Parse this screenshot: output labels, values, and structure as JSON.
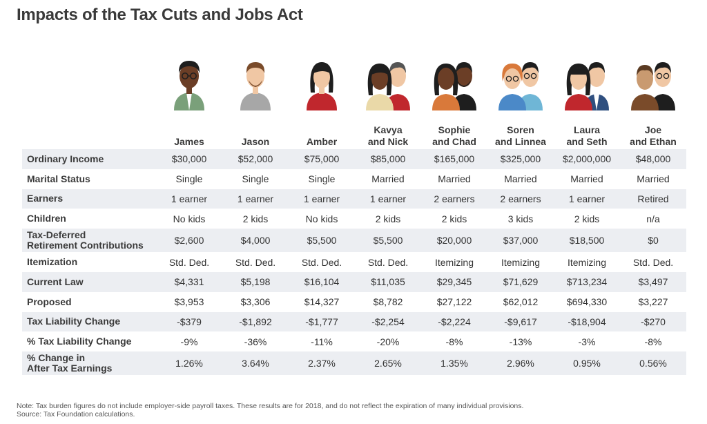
{
  "title": "Impacts of the Tax Cuts and Jobs Act",
  "chart_data": {
    "type": "table",
    "title": "Impacts of the Tax Cuts and Jobs Act",
    "columns": [
      {
        "name": "James",
        "name2": "",
        "avatar": "single-man-dark-glasses-icon"
      },
      {
        "name": "Jason",
        "name2": "",
        "avatar": "single-man-beard-icon"
      },
      {
        "name": "Amber",
        "name2": "",
        "avatar": "single-woman-icon"
      },
      {
        "name": "Kavya",
        "name2": "and Nick",
        "avatar": "couple-icon"
      },
      {
        "name": "Sophie",
        "name2": "and Chad",
        "avatar": "couple-icon"
      },
      {
        "name": "Soren",
        "name2": "and Linnea",
        "avatar": "couple-glasses-icon"
      },
      {
        "name": "Laura",
        "name2": "and Seth",
        "avatar": "couple-icon"
      },
      {
        "name": "Joe",
        "name2": "and Ethan",
        "avatar": "couple-men-icon"
      }
    ],
    "rows": [
      {
        "label": "Ordinary Income",
        "label2": "",
        "values": [
          "$30,000",
          "$52,000",
          "$75,000",
          "$85,000",
          "$165,000",
          "$325,000",
          "$2,000,000",
          "$48,000"
        ]
      },
      {
        "label": "Marital Status",
        "label2": "",
        "values": [
          "Single",
          "Single",
          "Single",
          "Married",
          "Married",
          "Married",
          "Married",
          "Married"
        ]
      },
      {
        "label": "Earners",
        "label2": "",
        "values": [
          "1 earner",
          "1 earner",
          "1 earner",
          "1 earner",
          "2 earners",
          "2 earners",
          "1 earner",
          "Retired"
        ]
      },
      {
        "label": "Children",
        "label2": "",
        "values": [
          "No kids",
          "2 kids",
          "No kids",
          "2 kids",
          "2 kids",
          "3 kids",
          "2 kids",
          "n/a"
        ]
      },
      {
        "label": "Tax-Deferred",
        "label2": "Retirement Contributions",
        "values": [
          "$2,600",
          "$4,000",
          "$5,500",
          "$5,500",
          "$20,000",
          "$37,000",
          "$18,500",
          "$0"
        ]
      },
      {
        "label": "Itemization",
        "label2": "",
        "values": [
          "Std. Ded.",
          "Std. Ded.",
          "Std. Ded.",
          "Std. Ded.",
          "Itemizing",
          "Itemizing",
          "Itemizing",
          "Std. Ded."
        ]
      },
      {
        "label": "Current Law",
        "label2": "",
        "values": [
          "$4,331",
          "$5,198",
          "$16,104",
          "$11,035",
          "$29,345",
          "$71,629",
          "$713,234",
          "$3,497"
        ]
      },
      {
        "label": "Proposed",
        "label2": "",
        "values": [
          "$3,953",
          "$3,306",
          "$14,327",
          "$8,782",
          "$27,122",
          "$62,012",
          "$694,330",
          "$3,227"
        ]
      },
      {
        "label": "Tax Liability Change",
        "label2": "",
        "values": [
          "-$379",
          "-$1,892",
          "-$1,777",
          "-$2,254",
          "-$2,224",
          "-$9,617",
          "-$18,904",
          "-$270"
        ]
      },
      {
        "label": "% Tax Liability Change",
        "label2": "",
        "values": [
          "-9%",
          "-36%",
          "-11%",
          "-20%",
          "-8%",
          "-13%",
          "-3%",
          "-8%"
        ]
      },
      {
        "label": "% Change in",
        "label2": "After Tax Earnings",
        "values": [
          "1.26%",
          "3.64%",
          "2.37%",
          "2.65%",
          "1.35%",
          "2.96%",
          "0.95%",
          "0.56%"
        ]
      }
    ]
  },
  "note": {
    "line1": "Note: Tax burden figures do not include employer-side payroll taxes. These results are for 2018, and do not reflect the expiration of many individual provisions.",
    "line2": "Source: Tax Foundation calculations."
  },
  "colors": {
    "row_shade": "#eceef2",
    "title": "#3a3a3a",
    "skin_dark": "#6b3e26",
    "skin_light": "#f0c7a4",
    "hair_dark": "#1e1e1e",
    "hair_brown": "#7a4b2a",
    "hair_red": "#d9793a",
    "shirt_green": "#7aa07a",
    "shirt_gray": "#a7a7a7",
    "shirt_red": "#c0272d",
    "shirt_navy": "#2f4f7f",
    "shirt_blue": "#4b89c8",
    "shirt_teal": "#6fb6d6"
  }
}
